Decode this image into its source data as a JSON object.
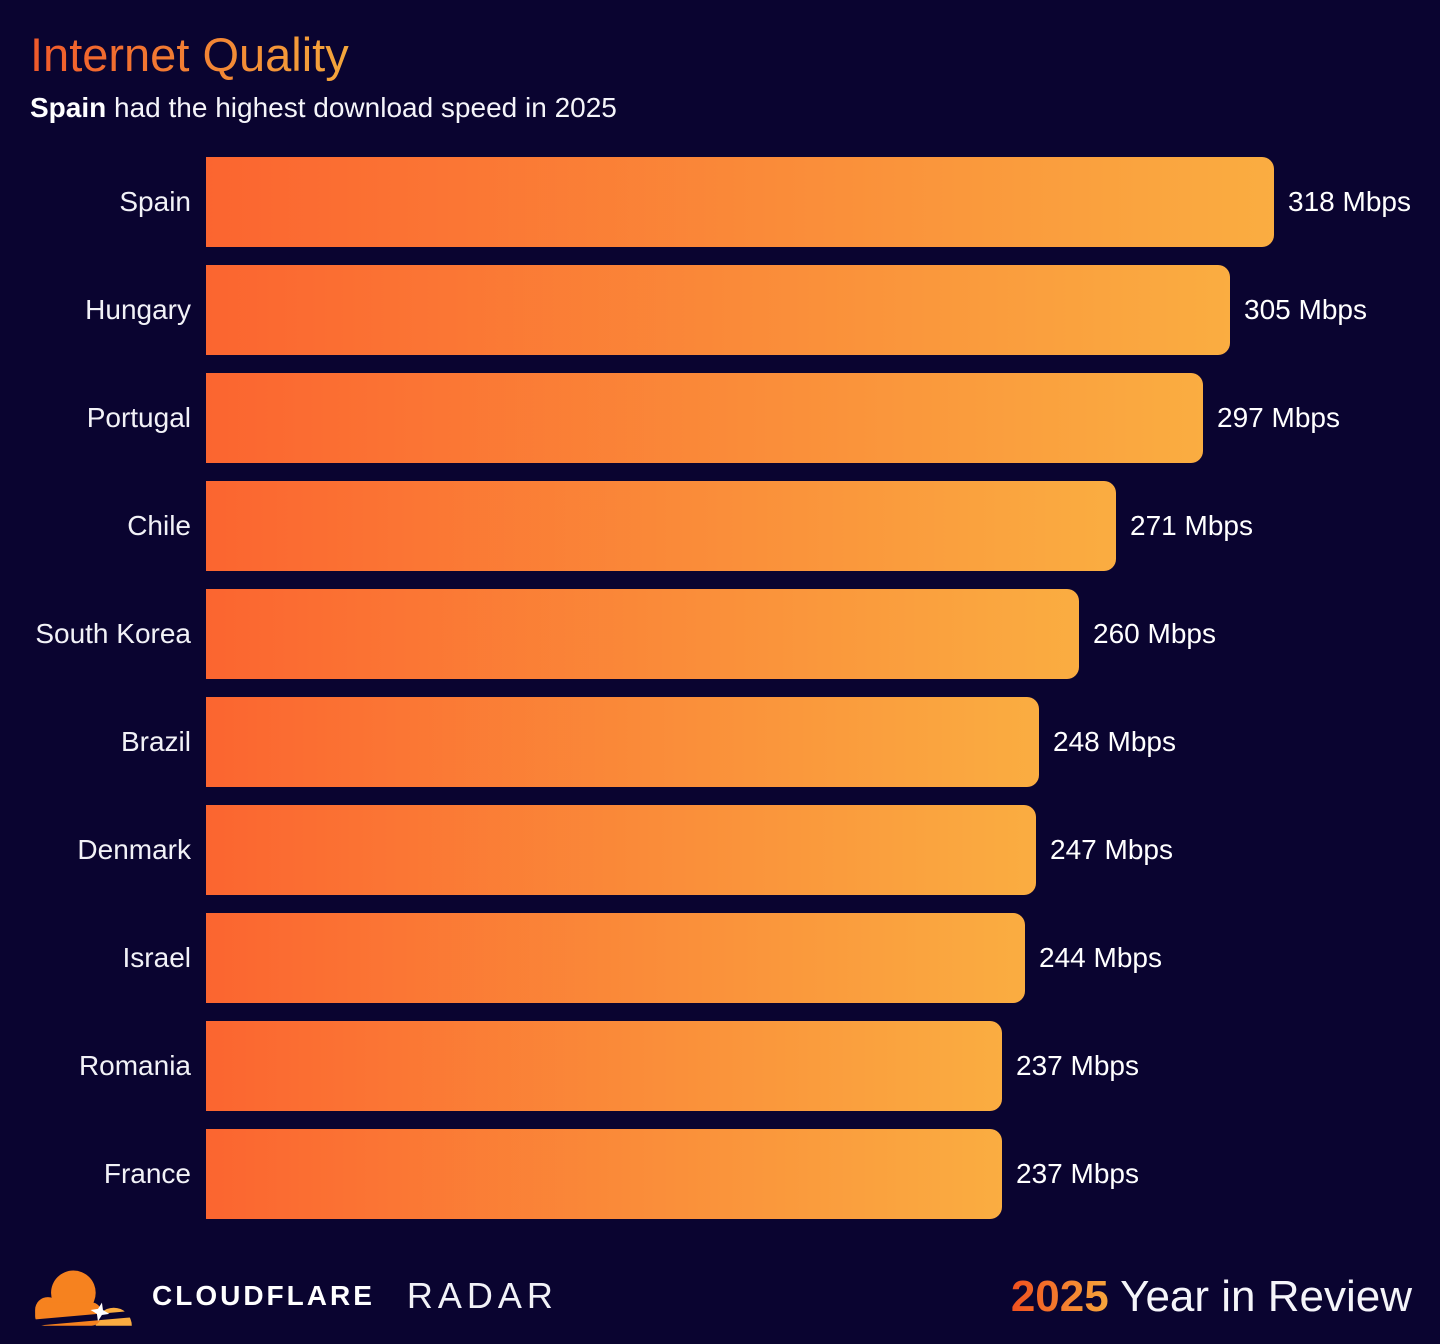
{
  "header": {
    "title": "Internet Quality",
    "subtitle_bold": "Spain",
    "subtitle_rest": " had the highest download speed in 2025"
  },
  "chart_data": {
    "type": "bar",
    "orientation": "horizontal",
    "title": "Internet Quality",
    "subtitle": "Spain had the highest download speed in 2025",
    "unit": "Mbps",
    "categories": [
      "Spain",
      "Hungary",
      "Portugal",
      "Chile",
      "South Korea",
      "Brazil",
      "Denmark",
      "Israel",
      "Romania",
      "France"
    ],
    "values": [
      318,
      305,
      297,
      271,
      260,
      248,
      247,
      244,
      237,
      237
    ],
    "value_labels": [
      "318 Mbps",
      "305 Mbps",
      "297 Mbps",
      "271 Mbps",
      "260 Mbps",
      "248 Mbps",
      "247 Mbps",
      "244 Mbps",
      "237 Mbps",
      "237 Mbps"
    ],
    "xlim": [
      0,
      318
    ],
    "grid": false,
    "legend": false,
    "bar_gradient": [
      "#FB6530",
      "#FAAD41"
    ]
  },
  "footer": {
    "logo_icon": "cloudflare-cloud-logo",
    "brand_wordmark": "CLOUDFLARE",
    "product_wordmark": "RADAR",
    "year": "2025",
    "tagline_rest": " Year in Review"
  },
  "colors": {
    "background": "#0A0430",
    "bar_gradient_start": "#FB6530",
    "bar_gradient_end": "#FAAD41",
    "title_gradient_start": "#F1592B",
    "title_gradient_end": "#F4A73C",
    "year_gradient_start": "#F1501F",
    "year_gradient_end": "#F6A63C",
    "text": "#F5F5FA",
    "logo_orange": "#F6821F",
    "logo_light_orange": "#FBAD41"
  }
}
